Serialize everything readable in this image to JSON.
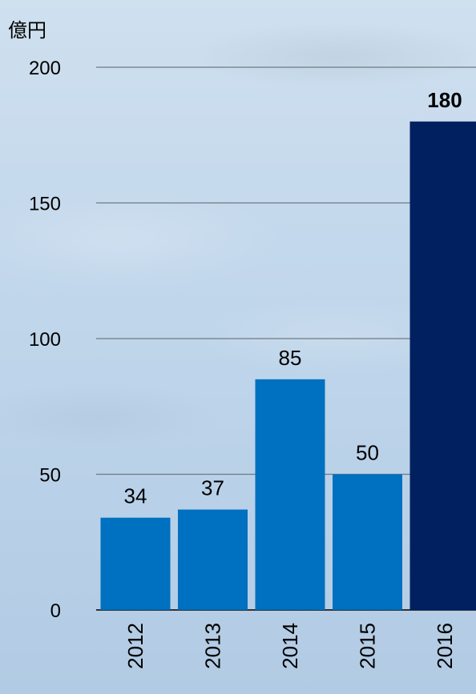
{
  "chart_data": {
    "type": "bar",
    "unit_label": "億円",
    "categories": [
      "2012",
      "2013",
      "2014",
      "2015",
      "2016"
    ],
    "values": [
      34,
      37,
      85,
      50,
      180
    ],
    "data_labels": [
      "34",
      "37",
      "85",
      "50",
      "180"
    ],
    "highlight_index": 4,
    "ylim": [
      0,
      200
    ],
    "yticks": [
      0,
      50,
      100,
      150,
      200
    ],
    "grid": true,
    "colors": {
      "bar": "#0070c0",
      "highlight": "#002060"
    }
  }
}
